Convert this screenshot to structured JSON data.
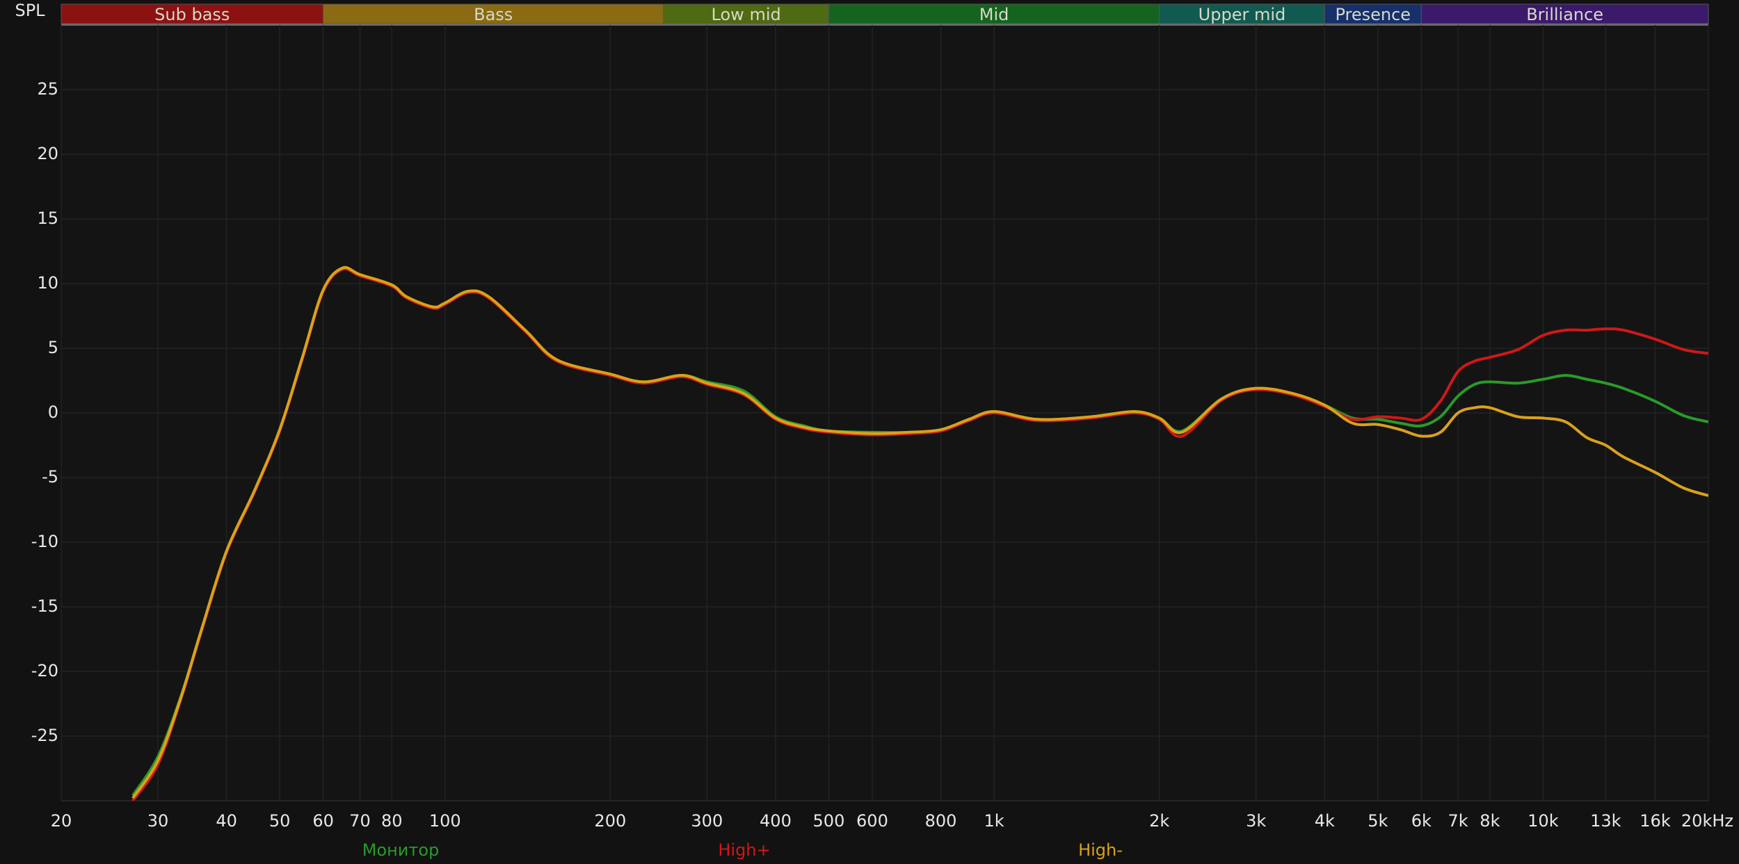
{
  "chart_data": {
    "type": "line",
    "y_axis_label": "SPL",
    "log_x": true,
    "grid": true,
    "xlim": [
      20,
      20000
    ],
    "ylim": [
      -30,
      30
    ],
    "xticks": [
      20,
      30,
      40,
      50,
      60,
      70,
      80,
      100,
      200,
      300,
      400,
      500,
      600,
      800,
      {
        "value": 1000,
        "label": "1k"
      },
      {
        "value": 2000,
        "label": "2k"
      },
      {
        "value": 3000,
        "label": "3k"
      },
      {
        "value": 4000,
        "label": "4k"
      },
      {
        "value": 5000,
        "label": "5k"
      },
      {
        "value": 6000,
        "label": "6k"
      },
      {
        "value": 7000,
        "label": "7k"
      },
      {
        "value": 8000,
        "label": "8k"
      },
      {
        "value": 10000,
        "label": "10k"
      },
      {
        "value": 13000,
        "label": "13k"
      },
      {
        "value": 16000,
        "label": "16k"
      },
      {
        "value": 20000,
        "label": "20kHz"
      }
    ],
    "yticks": [
      -25,
      -20,
      -15,
      -10,
      -5,
      0,
      5,
      10,
      15,
      20,
      25
    ],
    "bands": [
      {
        "name": "Sub bass",
        "from": 20,
        "to": 60,
        "color": "#8c1212"
      },
      {
        "name": "Bass",
        "from": 60,
        "to": 250,
        "color": "#8a6a12"
      },
      {
        "name": "Low mid",
        "from": 250,
        "to": 500,
        "color": "#4e6a12"
      },
      {
        "name": "Mid",
        "from": 500,
        "to": 2000,
        "color": "#14641f"
      },
      {
        "name": "Upper mid",
        "from": 2000,
        "to": 4000,
        "color": "#115a52"
      },
      {
        "name": "Presence",
        "from": 4000,
        "to": 6000,
        "color": "#16306c"
      },
      {
        "name": "Brilliance",
        "from": 6000,
        "to": 20000,
        "color": "#3b1a6c"
      }
    ],
    "x": [
      27,
      30,
      33,
      36,
      40,
      45,
      50,
      55,
      60,
      65,
      70,
      80,
      85,
      95,
      100,
      110,
      120,
      140,
      160,
      200,
      230,
      270,
      300,
      350,
      400,
      450,
      500,
      600,
      700,
      800,
      900,
      1000,
      1200,
      1500,
      1800,
      2000,
      2200,
      2600,
      3000,
      3500,
      4000,
      4500,
      5000,
      5500,
      6000,
      6500,
      7000,
      7500,
      8000,
      9000,
      10000,
      11000,
      12000,
      13000,
      14000,
      16000,
      18000,
      20000
    ],
    "series": [
      {
        "name": "Монитор",
        "color": "#2a9a2a",
        "values": [
          -29.6,
          -26.6,
          -22.0,
          -16.8,
          -10.7,
          -6.0,
          -1.3,
          4.3,
          9.5,
          11.2,
          10.7,
          9.9,
          9.0,
          8.2,
          8.5,
          9.4,
          9.0,
          6.4,
          4.1,
          3.0,
          2.4,
          2.9,
          2.4,
          1.7,
          -0.3,
          -1.0,
          -1.4,
          -1.5,
          -1.5,
          -1.3,
          -0.5,
          0.1,
          -0.5,
          -0.3,
          0.1,
          -0.4,
          -1.4,
          1.1,
          1.9,
          1.5,
          0.6,
          -0.4,
          -0.5,
          -0.8,
          -1.0,
          -0.3,
          1.3,
          2.2,
          2.4,
          2.3,
          2.6,
          2.9,
          2.6,
          2.3,
          1.9,
          0.9,
          -0.2,
          -0.7
        ]
      },
      {
        "name": "High+",
        "color": "#d01818",
        "values": [
          -30,
          -27.2,
          -22.2,
          -16.9,
          -10.8,
          -6.1,
          -1.4,
          4.2,
          9.4,
          11.1,
          10.6,
          9.8,
          8.9,
          8.1,
          8.4,
          9.3,
          8.9,
          6.3,
          4.0,
          2.9,
          2.3,
          2.8,
          2.2,
          1.4,
          -0.5,
          -1.2,
          -1.5,
          -1.7,
          -1.6,
          -1.4,
          -0.6,
          0.0,
          -0.6,
          -0.4,
          0.0,
          -0.5,
          -1.8,
          1.0,
          1.8,
          1.4,
          0.5,
          -0.5,
          -0.3,
          -0.4,
          -0.5,
          0.9,
          3.2,
          4.0,
          4.3,
          4.9,
          6.0,
          6.4,
          6.4,
          6.5,
          6.4,
          5.7,
          4.9,
          4.6
        ]
      },
      {
        "name": "High-",
        "color": "#d9a21a",
        "values": [
          -29.8,
          -26.9,
          -22.1,
          -16.8,
          -10.7,
          -6.0,
          -1.3,
          4.3,
          9.5,
          11.2,
          10.7,
          9.9,
          9.0,
          8.2,
          8.5,
          9.4,
          9.0,
          6.4,
          4.1,
          3.0,
          2.4,
          2.9,
          2.3,
          1.5,
          -0.4,
          -1.1,
          -1.4,
          -1.6,
          -1.5,
          -1.3,
          -0.5,
          0.1,
          -0.5,
          -0.3,
          0.1,
          -0.4,
          -1.5,
          1.1,
          1.9,
          1.5,
          0.6,
          -0.8,
          -0.9,
          -1.3,
          -1.8,
          -1.5,
          0.0,
          0.4,
          0.4,
          -0.3,
          -0.4,
          -0.7,
          -1.9,
          -2.5,
          -3.4,
          -4.6,
          -5.8,
          -6.4
        ]
      }
    ]
  }
}
